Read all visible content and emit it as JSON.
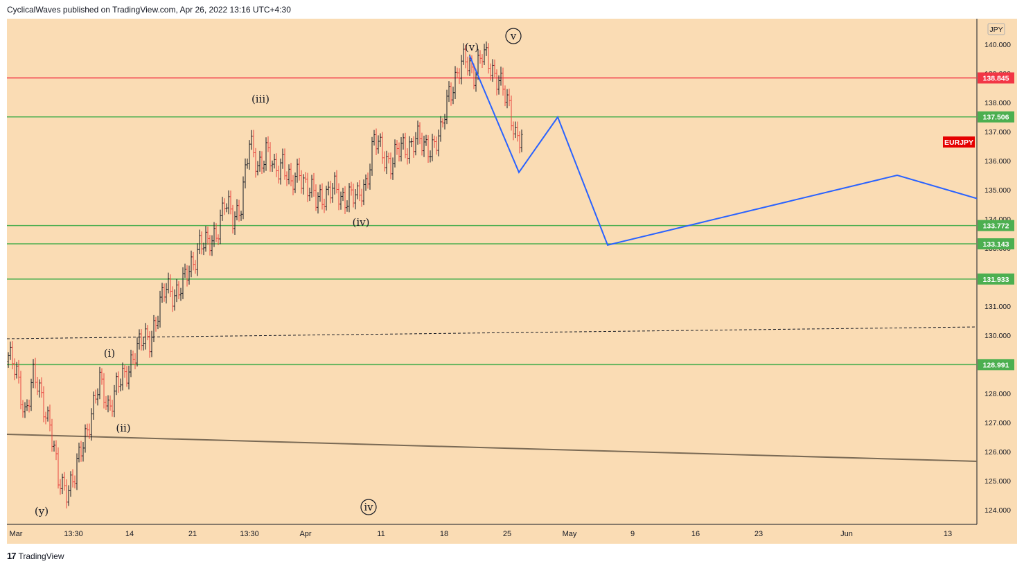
{
  "header": {
    "text": "CyclicalWaves published on TradingView.com, Apr 26, 2022 13:16 UTC+4:30"
  },
  "footer": {
    "brand": "TradingView",
    "logo_icon": "tradingview-logo-icon"
  },
  "colors": {
    "background": "#fadcb4",
    "green_level": "#4caf50",
    "red_level": "#f23645",
    "projection": "#2962ff",
    "trendline": "#7a6a55",
    "candle_up": "#131722",
    "candle_down": "#e8433e"
  },
  "chart_data": {
    "type": "candlestick",
    "symbol": "EURJPY",
    "currency": "JPY",
    "x_ticks": [
      "Mar",
      "13:30",
      "14",
      "21",
      "13:30",
      "Apr",
      "11",
      "18",
      "25",
      "May",
      "9",
      "16",
      "23",
      "Jun",
      "13"
    ],
    "y_ticks": [
      124,
      125,
      126,
      127,
      128,
      129,
      130,
      131,
      132,
      133,
      134,
      135,
      136,
      137,
      138,
      139,
      140
    ],
    "y_tick_labels": [
      "124.000",
      "125.000",
      "126.000",
      "127.000",
      "128.000",
      "129.000",
      "130.000",
      "131.000",
      "132.000",
      "133.000",
      "134.000",
      "135.000",
      "136.000",
      "137.000",
      "138.000",
      "139.000",
      "140.000"
    ],
    "ylim": [
      123.5,
      141.0
    ],
    "horizontal_levels": [
      {
        "value": 138.845,
        "label": "138.845",
        "color": "red"
      },
      {
        "value": 137.506,
        "label": "137.506",
        "color": "green"
      },
      {
        "value": 133.772,
        "label": "133.772",
        "color": "green"
      },
      {
        "value": 133.143,
        "label": "133.143",
        "color": "green"
      },
      {
        "value": 131.933,
        "label": "131.933",
        "color": "green"
      },
      {
        "value": 128.991,
        "label": "128.991",
        "color": "green"
      }
    ],
    "wave_labels": [
      {
        "text": "(y)",
        "circled": false
      },
      {
        "text": "(i)",
        "circled": false
      },
      {
        "text": "(ii)",
        "circled": false
      },
      {
        "text": "(iii)",
        "circled": false
      },
      {
        "text": "(iv)",
        "circled": false
      },
      {
        "text": "(v)",
        "circled": false
      },
      {
        "text": "v",
        "circled": true
      },
      {
        "text": "iv",
        "circled": true
      }
    ],
    "projection_path_prices": [
      139.6,
      135.6,
      137.5,
      133.1,
      135.5,
      134.7
    ],
    "price_series_key_points": [
      {
        "i": 0,
        "price": 129.3
      },
      {
        "i": 4,
        "price": 128.6
      },
      {
        "i": 8,
        "price": 127.4
      },
      {
        "i": 12,
        "price": 128.5
      },
      {
        "i": 16,
        "price": 127.9
      },
      {
        "i": 20,
        "price": 127.0
      },
      {
        "i": 24,
        "price": 124.9
      },
      {
        "i": 28,
        "price": 124.8
      },
      {
        "i": 32,
        "price": 125.1
      },
      {
        "i": 36,
        "price": 126.3
      },
      {
        "i": 40,
        "price": 127.4
      },
      {
        "i": 44,
        "price": 128.3
      },
      {
        "i": 48,
        "price": 127.6
      },
      {
        "i": 52,
        "price": 128.2
      },
      {
        "i": 56,
        "price": 128.5
      },
      {
        "i": 60,
        "price": 129.4
      },
      {
        "i": 64,
        "price": 129.7
      },
      {
        "i": 68,
        "price": 129.9
      },
      {
        "i": 72,
        "price": 130.8
      },
      {
        "i": 76,
        "price": 131.6
      },
      {
        "i": 80,
        "price": 131.5
      },
      {
        "i": 84,
        "price": 131.7
      },
      {
        "i": 88,
        "price": 132.4
      },
      {
        "i": 92,
        "price": 133.2
      },
      {
        "i": 96,
        "price": 133.0
      },
      {
        "i": 100,
        "price": 133.6
      },
      {
        "i": 104,
        "price": 134.5
      },
      {
        "i": 108,
        "price": 134.0
      },
      {
        "i": 112,
        "price": 134.6
      },
      {
        "i": 116,
        "price": 136.5
      },
      {
        "i": 120,
        "price": 135.9
      },
      {
        "i": 124,
        "price": 136.3
      },
      {
        "i": 128,
        "price": 135.6
      },
      {
        "i": 132,
        "price": 136.1
      },
      {
        "i": 136,
        "price": 135.0
      },
      {
        "i": 140,
        "price": 135.7
      },
      {
        "i": 144,
        "price": 135.1
      },
      {
        "i": 148,
        "price": 134.6
      },
      {
        "i": 152,
        "price": 134.9
      },
      {
        "i": 156,
        "price": 135.0
      },
      {
        "i": 160,
        "price": 134.7
      },
      {
        "i": 164,
        "price": 134.9
      },
      {
        "i": 168,
        "price": 134.6
      },
      {
        "i": 172,
        "price": 135.3
      },
      {
        "i": 176,
        "price": 136.7
      },
      {
        "i": 180,
        "price": 136.2
      },
      {
        "i": 184,
        "price": 136.0
      },
      {
        "i": 188,
        "price": 136.3
      },
      {
        "i": 192,
        "price": 136.5
      },
      {
        "i": 196,
        "price": 136.8
      },
      {
        "i": 200,
        "price": 136.4
      },
      {
        "i": 204,
        "price": 136.6
      },
      {
        "i": 208,
        "price": 136.8
      },
      {
        "i": 212,
        "price": 138.4
      },
      {
        "i": 216,
        "price": 139.0
      },
      {
        "i": 220,
        "price": 139.4
      },
      {
        "i": 224,
        "price": 139.1
      },
      {
        "i": 228,
        "price": 139.6
      },
      {
        "i": 232,
        "price": 139.2
      },
      {
        "i": 236,
        "price": 138.9
      },
      {
        "i": 240,
        "price": 137.9
      },
      {
        "i": 244,
        "price": 137.0
      },
      {
        "i": 247,
        "price": 136.9
      }
    ]
  }
}
